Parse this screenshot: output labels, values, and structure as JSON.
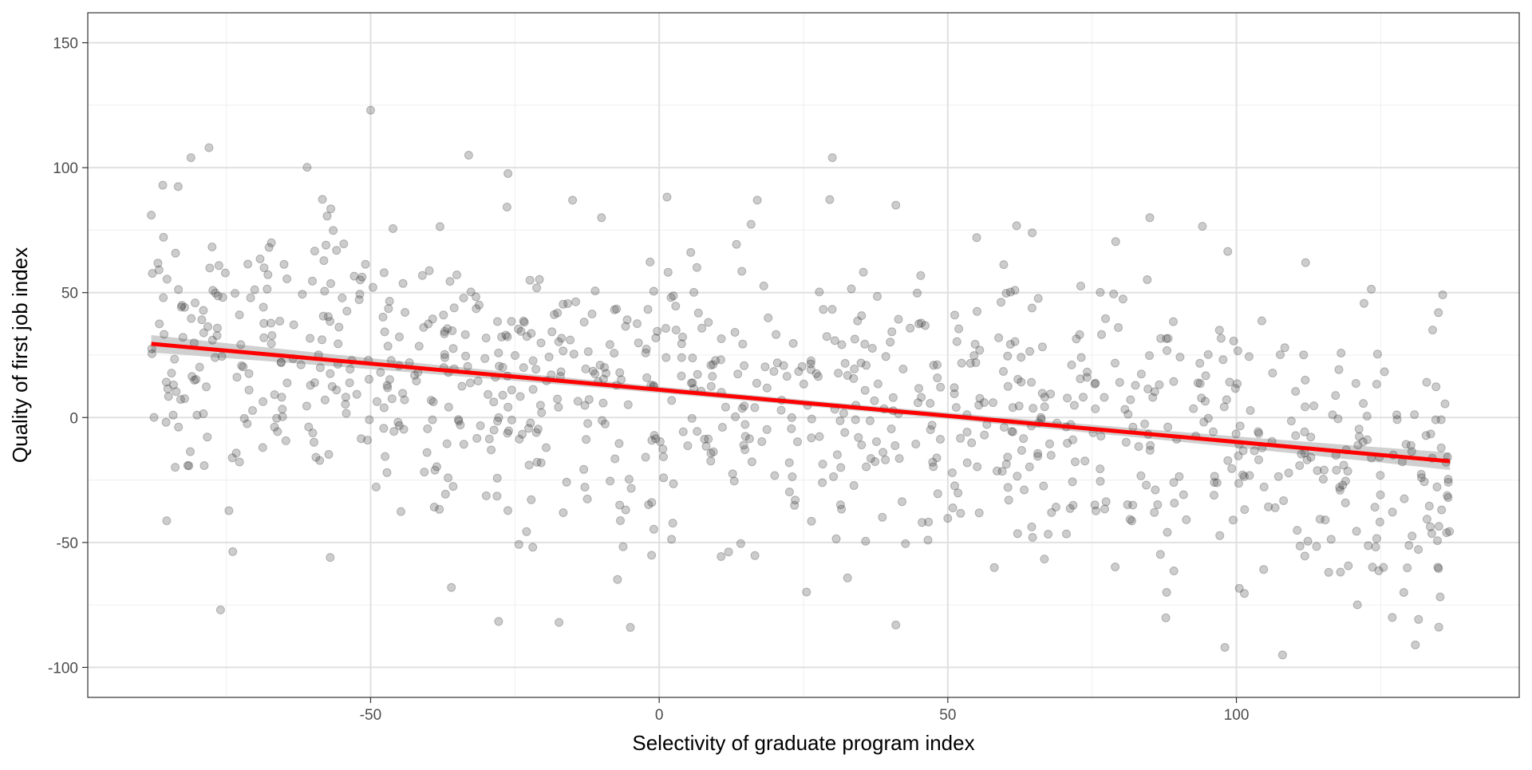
{
  "chart_data": {
    "type": "scatter",
    "title": "",
    "xlabel": "Selectivity of graduate program index",
    "ylabel": "Quality of first job index",
    "xlim": [
      -99,
      149
    ],
    "ylim": [
      -112,
      162
    ],
    "x_ticks": [
      -50,
      0,
      50,
      100
    ],
    "x_tick_labels": [
      "-50",
      "0",
      "50",
      "100"
    ],
    "y_ticks": [
      -100,
      -50,
      0,
      50,
      100,
      150
    ],
    "y_tick_labels": [
      "-100",
      "-50",
      "0",
      "50",
      "100",
      "150"
    ],
    "grid": true,
    "legend": "none",
    "colors": {
      "points": "#333333",
      "fit_line": "#ff0000",
      "confidence_band": "#c8c8c8",
      "grid_major": "#e0e0e0",
      "grid_minor": "#efefef",
      "panel_border": "#333333"
    },
    "points_alpha": 0.25,
    "n_points": 1000,
    "x_range": [
      -88,
      137
    ],
    "trend_line": {
      "x_start": -88,
      "y_start": 29.5,
      "x_end": 137,
      "y_end": -17.5
    },
    "confidence_band": {
      "half_width_ends": 3.5,
      "half_width_center": 1.2
    },
    "sample_points": [
      {
        "x": -50,
        "y": 123
      },
      {
        "x": -78,
        "y": 108
      },
      {
        "x": -33,
        "y": 105
      },
      {
        "x": 30,
        "y": 104
      },
      {
        "x": -88,
        "y": 81
      },
      {
        "x": -86,
        "y": 93
      },
      {
        "x": -76,
        "y": -77
      },
      {
        "x": -5,
        "y": -84
      },
      {
        "x": 41,
        "y": -83
      },
      {
        "x": 98,
        "y": -92
      },
      {
        "x": 108,
        "y": -95
      },
      {
        "x": 131,
        "y": -91
      },
      {
        "x": 127,
        "y": -80
      },
      {
        "x": 129,
        "y": -70
      },
      {
        "x": -57,
        "y": -56
      },
      {
        "x": -36,
        "y": -68
      },
      {
        "x": 85,
        "y": 80
      },
      {
        "x": 112,
        "y": 62
      },
      {
        "x": 135,
        "y": 42
      },
      {
        "x": 41,
        "y": 85
      },
      {
        "x": 55,
        "y": 72
      },
      {
        "x": 17,
        "y": 87
      },
      {
        "x": -15,
        "y": 87
      },
      {
        "x": -10,
        "y": 80
      }
    ]
  }
}
